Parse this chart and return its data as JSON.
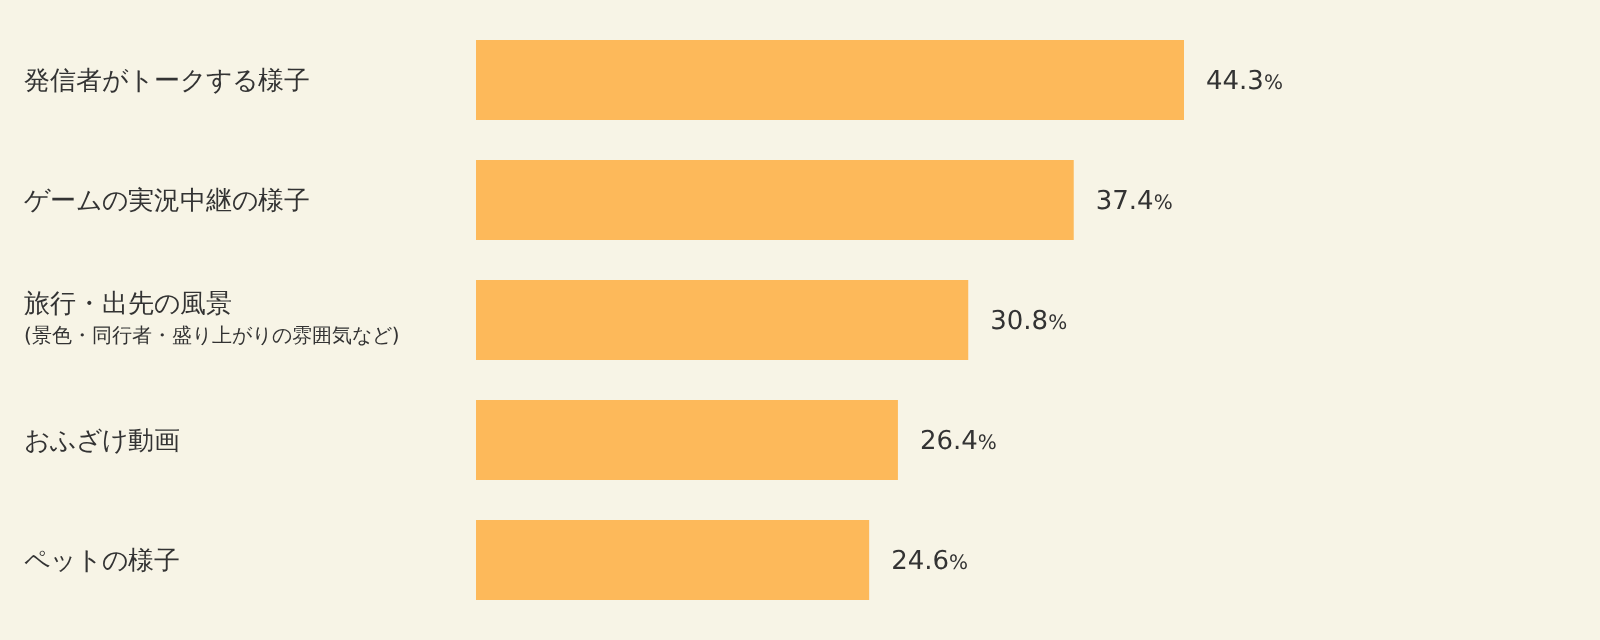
{
  "chart_data": {
    "type": "bar",
    "orientation": "horizontal",
    "categories": [
      "発信者がトークする様子",
      "ゲームの実況中継の様子",
      "旅行・出先の風景\n(景色・同行者・盛り上がりの雰囲気など)",
      "おふざけ動画",
      "ペットの様子"
    ],
    "values": [
      44.3,
      37.4,
      30.8,
      26.4,
      24.6
    ],
    "color": "#fdb95a",
    "value_labels": [
      "44.3%",
      "37.4%",
      "30.8%",
      "26.4%",
      "24.6%"
    ]
  }
}
